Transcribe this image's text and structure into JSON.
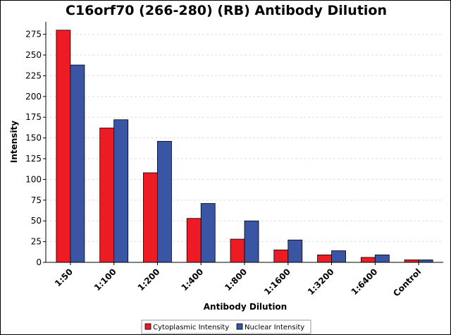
{
  "chart_data": {
    "type": "bar",
    "title": "C16orf70 (266-280) (RB) Antibody Dilution",
    "xlabel": "Antibody Dilution",
    "ylabel": "Intensity",
    "ylim": [
      0,
      290
    ],
    "yticks": [
      0,
      25,
      50,
      75,
      100,
      125,
      150,
      175,
      200,
      225,
      250,
      275
    ],
    "grid": true,
    "legend_position": "bottom-center",
    "categories": [
      "1:50",
      "1:100",
      "1:200",
      "1:400",
      "1:800",
      "1:1600",
      "1:3200",
      "1:6400",
      "Control"
    ],
    "series": [
      {
        "name": "Cytoplasmic Intensity",
        "color": "#ed1c24",
        "values": [
          280,
          162,
          108,
          53,
          28,
          15,
          9,
          6,
          3
        ]
      },
      {
        "name": "Nuclear Intensity",
        "color": "#3a55a4",
        "values": [
          238,
          172,
          146,
          71,
          50,
          27,
          14,
          9,
          3
        ]
      }
    ]
  }
}
